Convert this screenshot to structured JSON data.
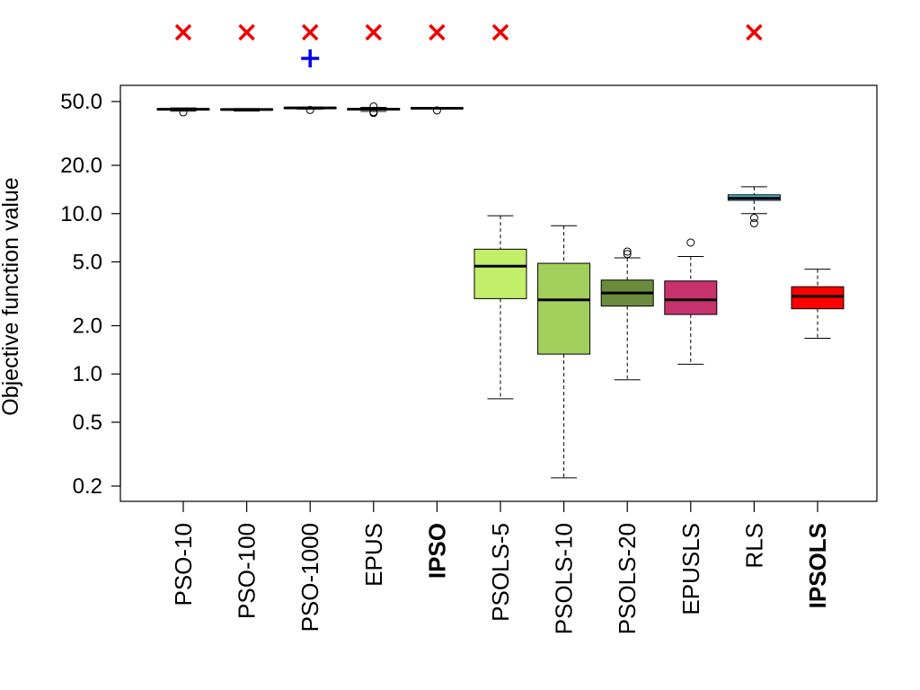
{
  "chart_data": {
    "type": "boxplot",
    "ylabel": "Objective function value",
    "yscale": "log",
    "ylim": [
      0.18,
      62
    ],
    "yticks": [
      {
        "value": 0.2,
        "label": "0.2"
      },
      {
        "value": 0.5,
        "label": "0.5"
      },
      {
        "value": 1.0,
        "label": "1.0"
      },
      {
        "value": 2.0,
        "label": "2.0"
      },
      {
        "value": 5.0,
        "label": "5.0"
      },
      {
        "value": 10.0,
        "label": "10.0"
      },
      {
        "value": 20.0,
        "label": "20.0"
      },
      {
        "value": 50.0,
        "label": "50.0"
      }
    ],
    "categories": [
      "PSO-10",
      "PSO-100",
      "PSO-1000",
      "EPUS",
      "IPSO",
      "PSOLS-5",
      "PSOLS-10",
      "PSOLS-20",
      "EPUSLS",
      "RLS",
      "IPSOLS"
    ],
    "boxes": [
      {
        "name": "PSO-10",
        "color": "#ffffff",
        "whisker_low": 43.5,
        "q1": 44.3,
        "median": 44.7,
        "q3": 45.0,
        "whisker_high": 45.6,
        "outliers": [
          42.8
        ]
      },
      {
        "name": "PSO-100",
        "color": "#ffffff",
        "whisker_low": 43.6,
        "q1": 44.3,
        "median": 44.6,
        "q3": 44.9,
        "whisker_high": 45.2,
        "outliers": []
      },
      {
        "name": "PSO-1000",
        "color": "#ffffff",
        "whisker_low": 44.8,
        "q1": 45.3,
        "median": 45.6,
        "q3": 45.9,
        "whisker_high": 46.1,
        "outliers": [
          44.3
        ]
      },
      {
        "name": "EPUS",
        "color": "#ffffff",
        "whisker_low": 43.4,
        "q1": 44.3,
        "median": 44.8,
        "q3": 45.3,
        "whisker_high": 46.0,
        "outliers": [
          42.4,
          43.0,
          46.6
        ]
      },
      {
        "name": "IPSO",
        "color": "#ffffff",
        "whisker_low": 44.9,
        "q1": 45.2,
        "median": 45.4,
        "q3": 45.6,
        "whisker_high": 45.8,
        "outliers": [
          44.0
        ]
      },
      {
        "name": "PSOLS-5",
        "color": "#c2ee69",
        "whisker_low": 0.7,
        "q1": 2.95,
        "median": 4.7,
        "q3": 6.0,
        "whisker_high": 9.7,
        "outliers": []
      },
      {
        "name": "PSOLS-10",
        "color": "#a2cf5c",
        "whisker_low": 0.225,
        "q1": 1.33,
        "median": 2.9,
        "q3": 4.9,
        "whisker_high": 8.4,
        "outliers": []
      },
      {
        "name": "PSOLS-20",
        "color": "#6b8c3c",
        "whisker_low": 0.92,
        "q1": 2.65,
        "median": 3.2,
        "q3": 3.85,
        "whisker_high": 5.3,
        "outliers": [
          5.6,
          5.8
        ]
      },
      {
        "name": "EPUSLS",
        "color": "#c8326d",
        "whisker_low": 1.15,
        "q1": 2.35,
        "median": 2.9,
        "q3": 3.8,
        "whisker_high": 5.4,
        "outliers": [
          6.6
        ]
      },
      {
        "name": "RLS",
        "color": "#39c9e3",
        "whisker_low": 10.0,
        "q1": 12.1,
        "median": 12.5,
        "q3": 13.1,
        "whisker_high": 14.7,
        "outliers": [
          8.7,
          9.4
        ]
      },
      {
        "name": "IPSOLS",
        "color": "#ff0000",
        "whisker_low": 1.67,
        "q1": 2.55,
        "median": 3.05,
        "q3": 3.5,
        "whisker_high": 4.5,
        "outliers": []
      }
    ],
    "top_markers": [
      {
        "category": "PSO-10",
        "symbol": "x",
        "color": "#ee0000",
        "row": 1
      },
      {
        "category": "PSO-100",
        "symbol": "x",
        "color": "#ee0000",
        "row": 1
      },
      {
        "category": "PSO-1000",
        "symbol": "x",
        "color": "#ee0000",
        "row": 1
      },
      {
        "category": "PSO-1000",
        "symbol": "+",
        "color": "#0000ee",
        "row": 2
      },
      {
        "category": "EPUS",
        "symbol": "x",
        "color": "#ee0000",
        "row": 1
      },
      {
        "category": "IPSO",
        "symbol": "x",
        "color": "#ee0000",
        "row": 1
      },
      {
        "category": "PSOLS-5",
        "symbol": "x",
        "color": "#ee0000",
        "row": 1
      },
      {
        "category": "RLS",
        "symbol": "x",
        "color": "#ee0000",
        "row": 1
      }
    ],
    "bold_labels": [
      "IPSO",
      "IPSOLS"
    ]
  }
}
